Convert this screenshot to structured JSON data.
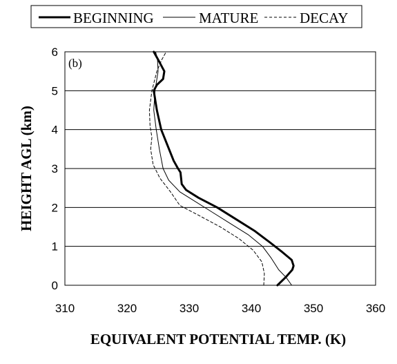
{
  "chart_data": {
    "type": "line",
    "panel_label": "(b)",
    "xlabel": "EQUIVALENT POTENTIAL TEMP. (K)",
    "ylabel": "HEIGHT AGL (km)",
    "xlim": [
      310,
      360
    ],
    "ylim": [
      0,
      6
    ],
    "xticks": [
      "310",
      "320",
      "330",
      "340",
      "350",
      "360"
    ],
    "yticks": [
      "0",
      "1",
      "2",
      "3",
      "4",
      "5",
      "6"
    ],
    "grid": "horizontal",
    "legend_position": "top",
    "series": [
      {
        "name": "BEGINNING",
        "style": "thick-solid",
        "color": "#000000",
        "points": [
          [
            344.2,
            0.0
          ],
          [
            345.5,
            0.2
          ],
          [
            346.6,
            0.4
          ],
          [
            346.8,
            0.5
          ],
          [
            346.5,
            0.65
          ],
          [
            345.0,
            0.85
          ],
          [
            343.0,
            1.1
          ],
          [
            340.5,
            1.4
          ],
          [
            337.5,
            1.7
          ],
          [
            334.5,
            2.0
          ],
          [
            331.5,
            2.25
          ],
          [
            329.5,
            2.45
          ],
          [
            328.8,
            2.6
          ],
          [
            328.6,
            2.9
          ],
          [
            328.2,
            3.0
          ],
          [
            327.5,
            3.2
          ],
          [
            326.5,
            3.6
          ],
          [
            325.5,
            4.0
          ],
          [
            324.8,
            4.5
          ],
          [
            324.3,
            5.0
          ],
          [
            324.8,
            5.15
          ],
          [
            325.8,
            5.3
          ],
          [
            326.0,
            5.5
          ],
          [
            325.0,
            5.8
          ],
          [
            324.3,
            6.0
          ]
        ]
      },
      {
        "name": "MATURE",
        "style": "thin-solid",
        "color": "#000000",
        "points": [
          [
            346.5,
            0.0
          ],
          [
            345.6,
            0.2
          ],
          [
            344.4,
            0.4
          ],
          [
            343.2,
            0.7
          ],
          [
            341.8,
            1.0
          ],
          [
            339.5,
            1.3
          ],
          [
            336.5,
            1.6
          ],
          [
            333.5,
            1.9
          ],
          [
            330.5,
            2.2
          ],
          [
            328.5,
            2.4
          ],
          [
            326.7,
            2.7
          ],
          [
            325.8,
            3.0
          ],
          [
            325.2,
            3.5
          ],
          [
            324.7,
            4.0
          ],
          [
            324.3,
            4.5
          ],
          [
            324.5,
            5.0
          ],
          [
            325.0,
            5.5
          ],
          [
            324.9,
            5.8
          ],
          [
            324.6,
            6.0
          ]
        ]
      },
      {
        "name": "DECAY",
        "style": "dashed",
        "color": "#000000",
        "points": [
          [
            342.0,
            0.0
          ],
          [
            342.1,
            0.3
          ],
          [
            341.7,
            0.6
          ],
          [
            340.3,
            0.9
          ],
          [
            338.0,
            1.2
          ],
          [
            335.0,
            1.5
          ],
          [
            331.5,
            1.8
          ],
          [
            328.5,
            2.05
          ],
          [
            327.0,
            2.4
          ],
          [
            325.3,
            2.75
          ],
          [
            324.2,
            3.1
          ],
          [
            323.8,
            3.5
          ],
          [
            324.0,
            3.8
          ],
          [
            323.7,
            4.1
          ],
          [
            323.6,
            4.5
          ],
          [
            324.0,
            5.0
          ],
          [
            324.8,
            5.5
          ],
          [
            325.6,
            5.8
          ],
          [
            326.3,
            6.0
          ]
        ]
      }
    ]
  }
}
